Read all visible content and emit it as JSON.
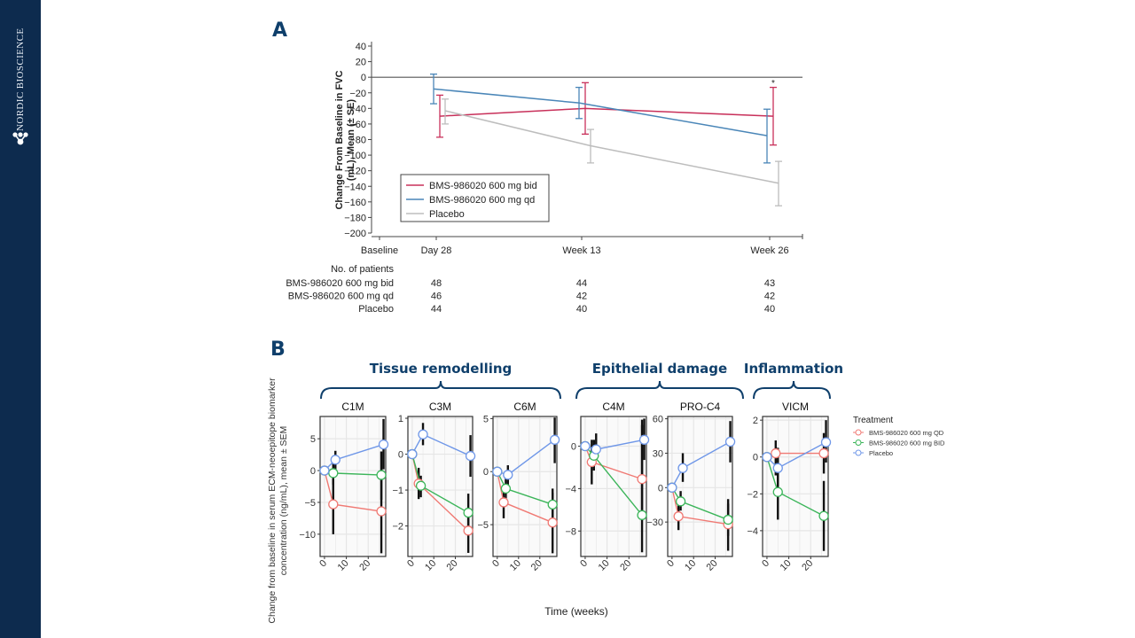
{
  "sidebar": {
    "brand": "NORDIC BIOSCIENCE",
    "logo_icon": "molecule-logo-icon",
    "bg_color": "#0d2b4e"
  },
  "panels": {
    "a_label": "A",
    "b_label": "B"
  },
  "chart_data": [
    {
      "type": "line",
      "panel": "A",
      "title": "",
      "ylabel": "Change From  Baseline in FVC (mL), Mean (± SE)",
      "ylabel_lines": [
        "Change From  Baseline in FVC",
        "(mL), Mean (± SE)"
      ],
      "xlabel": "",
      "ylim": [
        -200,
        40
      ],
      "yticks": [
        40,
        20,
        0,
        -20,
        -40,
        -60,
        -80,
        -100,
        -120,
        -140,
        -160,
        -180,
        -200
      ],
      "x_categories": [
        "Baseline",
        "Day 28",
        "Week 13",
        "Week 26"
      ],
      "x_weeks": [
        0,
        4,
        13,
        26
      ],
      "reference_line": 0,
      "grid": false,
      "legend_position": "bottom-left",
      "annotations": [
        {
          "text": "*",
          "at": "Week 26",
          "series": "BMS-986020 600 mg bid"
        }
      ],
      "series": [
        {
          "name": "BMS-986020 600 mg bid",
          "color": "#c8305a",
          "points": [
            {
              "x": "Day 28",
              "mean": -50,
              "lo": -77,
              "hi": -23
            },
            {
              "x": "Week 13",
              "mean": -40,
              "lo": -73,
              "hi": -7
            },
            {
              "x": "Week 26",
              "mean": -50,
              "lo": -87,
              "hi": -13
            }
          ]
        },
        {
          "name": "BMS-986020 600 mg qd",
          "color": "#4a86b8",
          "points": [
            {
              "x": "Day 28",
              "mean": -15,
              "lo": -34,
              "hi": 4
            },
            {
              "x": "Week 13",
              "mean": -33,
              "lo": -53,
              "hi": -13
            },
            {
              "x": "Week 26",
              "mean": -75,
              "lo": -110,
              "hi": -41
            }
          ]
        },
        {
          "name": "Placebo",
          "color": "#bdbdbd",
          "points": [
            {
              "x": "Day 28",
              "mean": -43,
              "lo": -60,
              "hi": -28
            },
            {
              "x": "Week 13",
              "mean": -88,
              "lo": -110,
              "hi": -67
            },
            {
              "x": "Week 26",
              "mean": -136,
              "lo": -165,
              "hi": -108
            }
          ]
        }
      ],
      "patients_table": {
        "header": "No. of patients",
        "columns": [
          "Day 28",
          "Week 13",
          "Week 26"
        ],
        "rows": [
          {
            "label": "BMS-986020 600 mg bid",
            "values": [
              48,
              44,
              43
            ]
          },
          {
            "label": "BMS-986020 600 mg qd",
            "values": [
              46,
              42,
              42
            ]
          },
          {
            "label": "Placebo",
            "values": [
              44,
              40,
              40
            ]
          }
        ]
      }
    },
    {
      "type": "line",
      "panel": "B",
      "ylabel": "Change from baseline in serum ECM-neoepitope biomarker concentration (ng/mL), mean ± SEM",
      "ylabel_lines": [
        "Change from baseline in serum ECM-neoepitope biomarker",
        "concentration (ng/mL), mean ± SEM"
      ],
      "xlabel": "Time (weeks)",
      "xticks": [
        0,
        10,
        20
      ],
      "xlim": [
        -2,
        28
      ],
      "grid": true,
      "legend_title": "Treatment",
      "legend_position": "right",
      "legend": [
        {
          "name": "BMS-986020 600 mg QD",
          "color": "#f07a74"
        },
        {
          "name": "BMS-986020 600 mg BID",
          "color": "#3cb55a"
        },
        {
          "name": "Placebo",
          "color": "#6f97e8"
        }
      ],
      "groups": [
        {
          "title": "Tissue remodelling",
          "facets": [
            "C1M",
            "C3M",
            "C6M"
          ]
        },
        {
          "title": "Epithelial damage",
          "facets": [
            "C4M",
            "PRO-C4"
          ]
        },
        {
          "title": "Inflammation",
          "facets": [
            "VICM"
          ]
        }
      ],
      "facets": [
        {
          "name": "C1M",
          "ylim": [
            -13.5,
            8.5
          ],
          "yticks": [
            5,
            0,
            -5,
            -10
          ],
          "series": {
            "QD": {
              "x": [
                0,
                4,
                26
              ],
              "y": [
                0,
                -5.3,
                -6.4
              ],
              "err": [
                [
                  0,
                  0
                ],
                [
                  -10,
                  -0.3
                ],
                [
                  -13,
                  3
                ]
              ]
            },
            "BID": {
              "x": [
                0,
                4,
                26
              ],
              "y": [
                0,
                -0.4,
                -0.7
              ],
              "err": [
                [
                  0,
                  0
                ],
                [
                  -2.2,
                  1.6
                ],
                [
                  -4.6,
                  3
                ]
              ]
            },
            "Placebo": {
              "x": [
                0,
                5,
                27
              ],
              "y": [
                0,
                1.7,
                4.1
              ],
              "err": [
                [
                  0,
                  0
                ],
                [
                  0.2,
                  3.1
                ],
                [
                  0.2,
                  8.1
                ]
              ]
            }
          }
        },
        {
          "name": "C3M",
          "ylim": [
            -2.85,
            1.05
          ],
          "yticks": [
            1,
            0,
            -1,
            -2
          ],
          "series": {
            "QD": {
              "x": [
                0,
                3,
                26
              ],
              "y": [
                0,
                -0.82,
                -2.13
              ],
              "err": [
                [
                  0,
                  0
                ],
                [
                  -1.25,
                  -0.38
                ],
                [
                  -2.75,
                  -1.5
                ]
              ]
            },
            "BID": {
              "x": [
                0,
                4,
                26
              ],
              "y": [
                0,
                -0.88,
                -1.63
              ],
              "err": [
                [
                  0,
                  0
                ],
                [
                  -1.2,
                  -0.6
                ],
                [
                  -2.1,
                  -1.1
                ]
              ]
            },
            "Placebo": {
              "x": [
                0,
                5,
                27
              ],
              "y": [
                0,
                0.55,
                -0.05
              ],
              "err": [
                [
                  0,
                  0
                ],
                [
                  0.25,
                  0.87
                ],
                [
                  -0.63,
                  0.53
                ]
              ]
            }
          }
        },
        {
          "name": "C6M",
          "ylim": [
            -8,
            5.2
          ],
          "yticks": [
            5,
            0,
            -5
          ],
          "series": {
            "QD": {
              "x": [
                0,
                3,
                26
              ],
              "y": [
                0,
                -2.9,
                -4.8
              ],
              "err": [
                [
                  0,
                  0
                ],
                [
                  -4.4,
                  -1.4
                ],
                [
                  -7.7,
                  -2
                ]
              ]
            },
            "BID": {
              "x": [
                0,
                4,
                26
              ],
              "y": [
                0,
                -1.6,
                -3.1
              ],
              "err": [
                [
                  0,
                  0
                ],
                [
                  -3,
                  -0.3
                ],
                [
                  -4.5,
                  -1.6
                ]
              ]
            },
            "Placebo": {
              "x": [
                0,
                5,
                27
              ],
              "y": [
                0,
                -0.3,
                3
              ],
              "err": [
                [
                  0,
                  0
                ],
                [
                  -1.3,
                  0.6
                ],
                [
                  0.8,
                  5.1
                ]
              ]
            }
          }
        },
        {
          "name": "C4M",
          "ylim": [
            -10.4,
            2.8
          ],
          "yticks": [
            0,
            -4,
            -8
          ],
          "series": {
            "QD": {
              "x": [
                0,
                3,
                26
              ],
              "y": [
                0,
                -1.5,
                -3.1
              ],
              "err": [
                [
                  0,
                  0
                ],
                [
                  -3.6,
                  0.6
                ],
                [
                  -6.6,
                  2
                ]
              ]
            },
            "BID": {
              "x": [
                0,
                4,
                26
              ],
              "y": [
                0,
                -0.9,
                -6.5
              ],
              "err": [
                [
                  0,
                  0
                ],
                [
                  -2.3,
                  0.6
                ],
                [
                  -10,
                  2.5
                ]
              ]
            },
            "Placebo": {
              "x": [
                0,
                5,
                27
              ],
              "y": [
                0,
                -0.3,
                0.6
              ],
              "err": [
                [
                  0,
                  0
                ],
                [
                  -1.3,
                  1.2
                ],
                [
                  -1.3,
                  2.6
                ]
              ]
            }
          }
        },
        {
          "name": "PRO-C4",
          "ylim": [
            -60,
            62
          ],
          "yticks": [
            60,
            30,
            0,
            -30
          ],
          "series": {
            "QD": {
              "x": [
                0,
                3,
                26
              ],
              "y": [
                0,
                -25,
                -32
              ],
              "err": [
                [
                  0,
                  0
                ],
                [
                  -37,
                  -13
                ],
                [
                  -55,
                  -10
                ]
              ]
            },
            "BID": {
              "x": [
                0,
                4,
                26
              ],
              "y": [
                0,
                -12,
                -28
              ],
              "err": [
                [
                  0,
                  0
                ],
                [
                  -20,
                  -3
                ],
                [
                  -42,
                  -14
                ]
              ]
            },
            "Placebo": {
              "x": [
                0,
                5,
                27
              ],
              "y": [
                0,
                17,
                40
              ],
              "err": [
                [
                  0,
                  0
                ],
                [
                  5,
                  30
                ],
                [
                  22,
                  58
                ]
              ]
            }
          }
        },
        {
          "name": "VICM",
          "ylim": [
            -5.4,
            2.2
          ],
          "yticks": [
            2,
            0,
            -2,
            -4
          ],
          "series": {
            "QD": {
              "x": [
                0,
                4,
                26
              ],
              "y": [
                0,
                0.2,
                0.2
              ],
              "err": [
                [
                  0,
                  0
                ],
                [
                  -1,
                  0.9
                ],
                [
                  -0.9,
                  1.3
                ]
              ]
            },
            "BID": {
              "x": [
                0,
                5,
                26
              ],
              "y": [
                0,
                -1.9,
                -3.2
              ],
              "err": [
                [
                  0,
                  0
                ],
                [
                  -3.4,
                  -0.4
                ],
                [
                  -5.1,
                  -1.3
                ]
              ]
            },
            "Placebo": {
              "x": [
                0,
                5,
                27
              ],
              "y": [
                0,
                -0.6,
                0.8
              ],
              "err": [
                [
                  0,
                  0
                ],
                [
                  -1.7,
                  0.5
                ],
                [
                  -0.3,
                  2
                ]
              ]
            }
          }
        }
      ]
    }
  ]
}
